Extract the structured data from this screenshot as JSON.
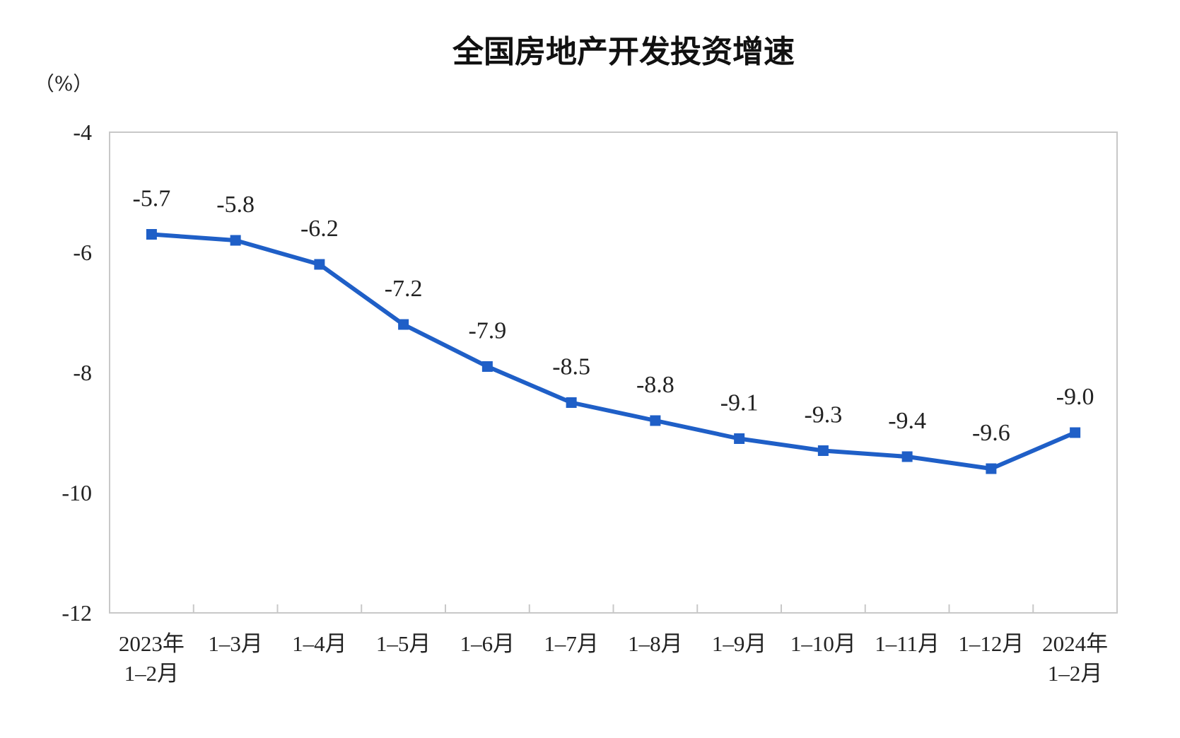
{
  "chart_data": {
    "type": "line",
    "title": "全国房地产开发投资增速",
    "unit_label": "（%）",
    "categories": [
      [
        "2023年",
        "1–2月"
      ],
      [
        "1–3月"
      ],
      [
        "1–4月"
      ],
      [
        "1–5月"
      ],
      [
        "1–6月"
      ],
      [
        "1–7月"
      ],
      [
        "1–8月"
      ],
      [
        "1–9月"
      ],
      [
        "1–10月"
      ],
      [
        "1–11月"
      ],
      [
        "1–12月"
      ],
      [
        "2024年",
        "1–2月"
      ]
    ],
    "series": [
      {
        "values": [
          -5.7,
          -5.8,
          -6.2,
          -7.2,
          -7.9,
          -8.5,
          -8.8,
          -9.1,
          -9.3,
          -9.4,
          -9.6,
          -9.0
        ],
        "labels": [
          "-5.7",
          "-5.8",
          "-6.2",
          "-7.2",
          "-7.9",
          "-8.5",
          "-8.8",
          "-9.1",
          "-9.3",
          "-9.4",
          "-9.6",
          "-9.0"
        ],
        "color": "#1f5fc7"
      }
    ],
    "ylim": [
      -12,
      -4
    ],
    "yticks": [
      -4,
      -6,
      -8,
      -10,
      -12
    ],
    "grid": false,
    "legend": "none"
  }
}
